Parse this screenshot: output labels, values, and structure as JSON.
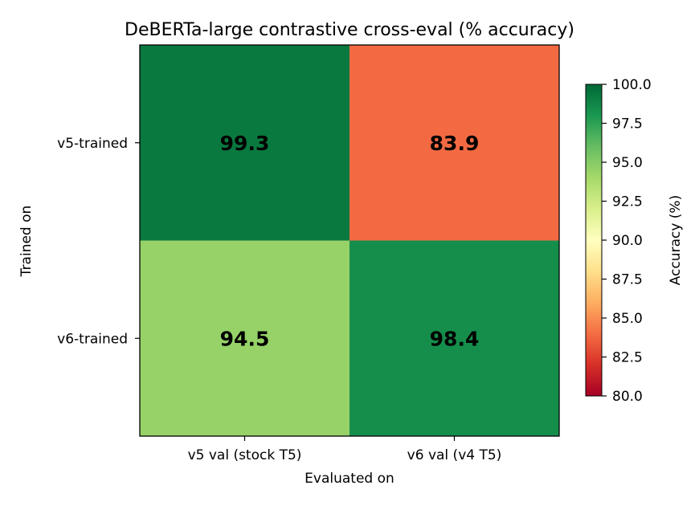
{
  "chart_data": {
    "type": "heatmap",
    "title": "DeBERTa-large contrastive cross-eval (% accuracy)",
    "xlabel": "Evaluated on",
    "ylabel": "Trained on",
    "x_categories": [
      "v5 val (stock T5)",
      "v6 val (v4 T5)"
    ],
    "y_categories": [
      "v5-trained",
      "v6-trained"
    ],
    "values": [
      [
        99.3,
        83.9
      ],
      [
        94.5,
        98.4
      ]
    ],
    "value_labels": [
      [
        "99.3",
        "83.9"
      ],
      [
        "94.5",
        "98.4"
      ]
    ],
    "colormap": "RdYlGn",
    "vmin": 80.0,
    "vmax": 100.0,
    "colorbar": {
      "label": "Accuracy (%)",
      "ticks": [
        100.0,
        97.5,
        95.0,
        92.5,
        90.0,
        87.5,
        85.0,
        82.5,
        80.0
      ],
      "tick_labels": [
        "100.0",
        "97.5",
        "95.0",
        "92.5",
        "90.0",
        "87.5",
        "85.0",
        "82.5",
        "80.0"
      ]
    }
  }
}
